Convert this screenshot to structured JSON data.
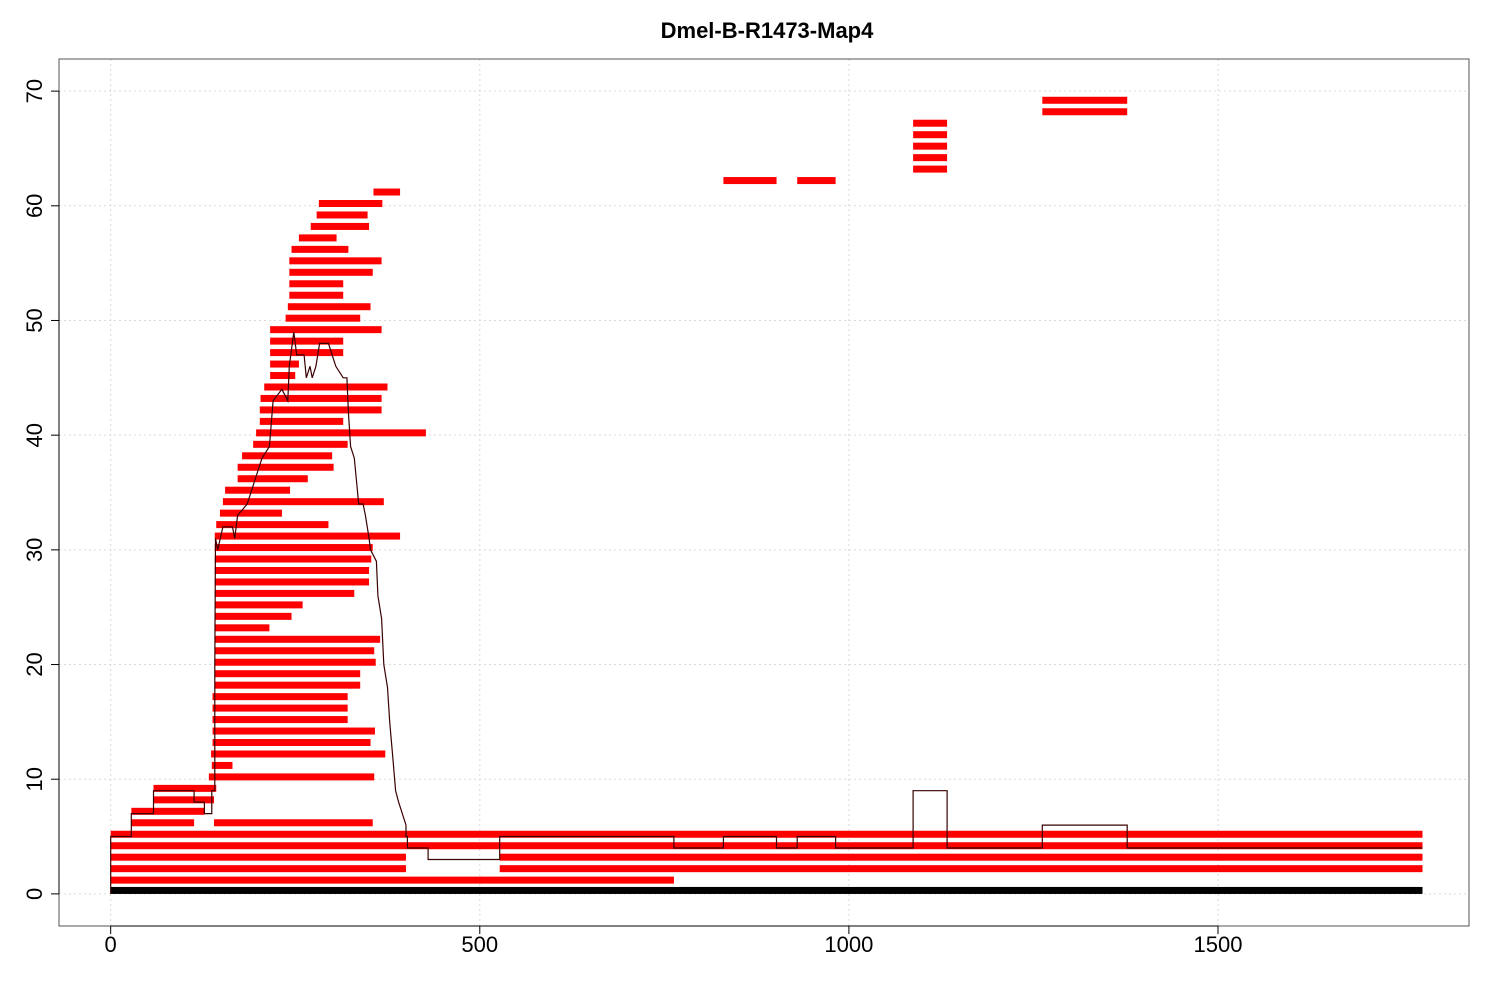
{
  "chart_data": {
    "type": "bar",
    "title": "Dmel-B-R1473-Map4",
    "xlim": [
      -70,
      1840
    ],
    "ylim": [
      -2.8,
      72.8
    ],
    "xticks": [
      0,
      500,
      1000,
      1500
    ],
    "yticks": [
      0,
      10,
      20,
      30,
      40,
      50,
      60,
      70
    ],
    "grid": true,
    "colors": {
      "segment": "#ff0000",
      "coverage": "#3a0000",
      "baseline": "#000000",
      "grid": "#d9d9d9",
      "frame": "#555555"
    },
    "baseline": {
      "x0": 0,
      "x1": 1777,
      "y": 0.3
    },
    "segments": [
      [
        0,
        763,
        1.2
      ],
      [
        0,
        400,
        2.2
      ],
      [
        527,
        1777,
        2.2
      ],
      [
        0,
        400,
        3.2
      ],
      [
        527,
        1777,
        3.2
      ],
      [
        0,
        1777,
        4.2
      ],
      [
        0,
        1777,
        5.2
      ],
      [
        28,
        113,
        6.2
      ],
      [
        140,
        355,
        6.2
      ],
      [
        28,
        127,
        7.2
      ],
      [
        58,
        140,
        8.2
      ],
      [
        58,
        143,
        9.2
      ],
      [
        133,
        357,
        10.2
      ],
      [
        137,
        165,
        11.2
      ],
      [
        136,
        372,
        12.2
      ],
      [
        138,
        352,
        13.2
      ],
      [
        138,
        358,
        14.2
      ],
      [
        138,
        321,
        15.2
      ],
      [
        138,
        321,
        16.2
      ],
      [
        138,
        321,
        17.2
      ],
      [
        141,
        338,
        18.2
      ],
      [
        141,
        338,
        19.2
      ],
      [
        141,
        359,
        20.2
      ],
      [
        141,
        357,
        21.2
      ],
      [
        141,
        365,
        22.2
      ],
      [
        141,
        215,
        23.2
      ],
      [
        141,
        245,
        24.2
      ],
      [
        141,
        260,
        25.2
      ],
      [
        141,
        330,
        26.2
      ],
      [
        141,
        350,
        27.2
      ],
      [
        141,
        350,
        28.2
      ],
      [
        141,
        353,
        29.2
      ],
      [
        141,
        355,
        30.2
      ],
      [
        141,
        392,
        31.2
      ],
      [
        143,
        295,
        32.2
      ],
      [
        148,
        232,
        33.2
      ],
      [
        152,
        370,
        34.2
      ],
      [
        155,
        243,
        35.2
      ],
      [
        172,
        267,
        36.2
      ],
      [
        172,
        302,
        37.2
      ],
      [
        178,
        300,
        38.2
      ],
      [
        193,
        321,
        39.2
      ],
      [
        197,
        427,
        40.2
      ],
      [
        202,
        315,
        41.2
      ],
      [
        202,
        367,
        42.2
      ],
      [
        203,
        367,
        43.2
      ],
      [
        208,
        375,
        44.2
      ],
      [
        216,
        250,
        45.2
      ],
      [
        216,
        255,
        46.2
      ],
      [
        216,
        315,
        47.2
      ],
      [
        216,
        315,
        48.2
      ],
      [
        216,
        367,
        49.2
      ],
      [
        237,
        338,
        50.2
      ],
      [
        240,
        352,
        51.2
      ],
      [
        242,
        315,
        52.2
      ],
      [
        242,
        315,
        53.2
      ],
      [
        242,
        355,
        54.2
      ],
      [
        242,
        367,
        55.2
      ],
      [
        245,
        322,
        56.2
      ],
      [
        255,
        306,
        57.2
      ],
      [
        271,
        350,
        58.2
      ],
      [
        279,
        348,
        59.2
      ],
      [
        282,
        368,
        60.2
      ],
      [
        356,
        392,
        61.2
      ],
      [
        830,
        902,
        62.2
      ],
      [
        930,
        982,
        62.2
      ],
      [
        1087,
        1133,
        63.2
      ],
      [
        1087,
        1133,
        64.2
      ],
      [
        1087,
        1133,
        65.2
      ],
      [
        1087,
        1133,
        66.2
      ],
      [
        1087,
        1133,
        67.2
      ],
      [
        1262,
        1377,
        68.2
      ],
      [
        1262,
        1377,
        69.2
      ]
    ],
    "coverage": [
      [
        0,
        0
      ],
      [
        0,
        5
      ],
      [
        28,
        5
      ],
      [
        28,
        7
      ],
      [
        58,
        7
      ],
      [
        58,
        9
      ],
      [
        113,
        9
      ],
      [
        113,
        8
      ],
      [
        127,
        8
      ],
      [
        127,
        7
      ],
      [
        137,
        7
      ],
      [
        137,
        9
      ],
      [
        141,
        9
      ],
      [
        141,
        20
      ],
      [
        142,
        31
      ],
      [
        145,
        30
      ],
      [
        152,
        32
      ],
      [
        165,
        32
      ],
      [
        168,
        31
      ],
      [
        172,
        33
      ],
      [
        185,
        34
      ],
      [
        195,
        36
      ],
      [
        205,
        38
      ],
      [
        215,
        39
      ],
      [
        220,
        43
      ],
      [
        232,
        44
      ],
      [
        240,
        43
      ],
      [
        242,
        46
      ],
      [
        248,
        49
      ],
      [
        252,
        47
      ],
      [
        262,
        47
      ],
      [
        265,
        45
      ],
      [
        270,
        46
      ],
      [
        273,
        45
      ],
      [
        278,
        46
      ],
      [
        283,
        48
      ],
      [
        295,
        48
      ],
      [
        300,
        47
      ],
      [
        305,
        46
      ],
      [
        315,
        45
      ],
      [
        320,
        45
      ],
      [
        322,
        42
      ],
      [
        325,
        39
      ],
      [
        330,
        38
      ],
      [
        333,
        36
      ],
      [
        336,
        34
      ],
      [
        342,
        34
      ],
      [
        345,
        33
      ],
      [
        350,
        31
      ],
      [
        352,
        30
      ],
      [
        360,
        29
      ],
      [
        362,
        26
      ],
      [
        367,
        24
      ],
      [
        370,
        20
      ],
      [
        375,
        18
      ],
      [
        378,
        15
      ],
      [
        382,
        12
      ],
      [
        386,
        9
      ],
      [
        390,
        8
      ],
      [
        400,
        6
      ],
      [
        400,
        5
      ],
      [
        402,
        5
      ],
      [
        402,
        4
      ],
      [
        430,
        4
      ],
      [
        430,
        3
      ],
      [
        527,
        3
      ],
      [
        527,
        5
      ],
      [
        763,
        5
      ],
      [
        763,
        4
      ],
      [
        830,
        4
      ],
      [
        830,
        5
      ],
      [
        902,
        5
      ],
      [
        902,
        4
      ],
      [
        930,
        4
      ],
      [
        930,
        5
      ],
      [
        982,
        5
      ],
      [
        982,
        4
      ],
      [
        1087,
        4
      ],
      [
        1087,
        9
      ],
      [
        1133,
        9
      ],
      [
        1133,
        4
      ],
      [
        1262,
        4
      ],
      [
        1262,
        6
      ],
      [
        1377,
        6
      ],
      [
        1377,
        4
      ],
      [
        1777,
        4
      ]
    ]
  }
}
